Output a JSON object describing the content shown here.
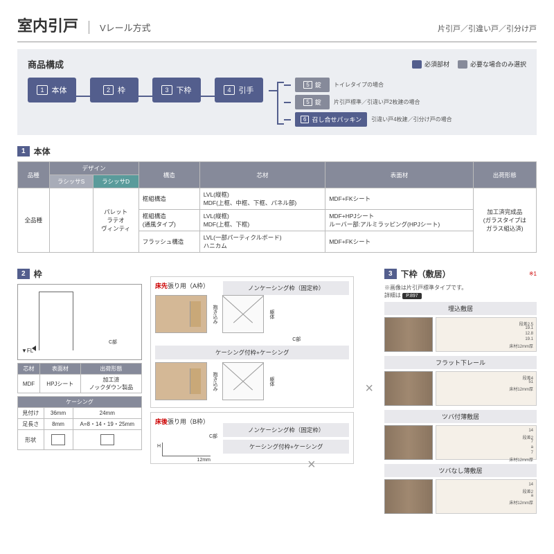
{
  "header": {
    "title": "室内引戸",
    "subtitle": "Vレール方式",
    "variants": "片引戸／引違い戸／引分け戸"
  },
  "composition": {
    "title": "商品構成",
    "legend": {
      "required": "必須部材",
      "optional": "必要な場合のみ選択",
      "required_color": "#535e8d",
      "optional_color": "#868a9a"
    },
    "boxes": [
      {
        "n": "1",
        "t": "本体"
      },
      {
        "n": "2",
        "t": "枠"
      },
      {
        "n": "3",
        "t": "下枠"
      },
      {
        "n": "4",
        "t": "引手"
      }
    ],
    "branches": [
      {
        "n": "5",
        "t": "錠",
        "cls": "",
        "label": "トイレタイプの場合"
      },
      {
        "n": "5",
        "t": "錠",
        "cls": "",
        "label": "片引戸標準／引違い戸2枚建の場合"
      },
      {
        "n": "6",
        "t": "召し合せパッキン",
        "cls": "blue",
        "label": "引違い戸4枚建／引分け戸の場合"
      }
    ]
  },
  "sec1": {
    "num": "1",
    "title": "本体",
    "headers": {
      "c1": "品種",
      "c2": "デザイン",
      "c2a": "ラシッサS",
      "c2b": "ラシッサD",
      "c3": "構造",
      "c4": "芯材",
      "c5": "表面材",
      "c6": "出荷形態"
    },
    "row_label": "全品種",
    "designs": "パレット\nラテオ\nヴィンティ",
    "rows": [
      {
        "k": "框組構造",
        "s": "LVL(縦框)\nMDF(上框、中框、下框、パネル部)",
        "m": "MDF+FKシート"
      },
      {
        "k": "框組構造\n(通風タイプ)",
        "s": "LVL(縦框)\nMDF(上框、下框)",
        "m": "MDF+HPJシート\nルーバー部:アルミラッピング(HPJシート)"
      },
      {
        "k": "フラッシュ構造",
        "s": "LVL(一部パーティクルボード)\nハニカム",
        "m": "MDF+FKシート"
      }
    ],
    "ship": "加工済完成品\n(ガラスタイプは\nガラス組込済)"
  },
  "sec2": {
    "num": "2",
    "title": "枠",
    "spec": {
      "h": [
        "芯材",
        "表面材",
        "出荷形態"
      ],
      "r": [
        "MDF",
        "HPJシート",
        "加工済\nノックダウン製品"
      ]
    },
    "casing": {
      "title": "ケーシング",
      "h": [
        "見付け",
        "36mm",
        "24mm"
      ],
      "r": [
        "足長さ",
        "8mm",
        "A=8・14・19・25mm"
      ],
      "shape": "形状"
    },
    "frameA": {
      "title_pre": "床先",
      "title_post": "張り用（A枠）",
      "opt1": "ノンケーシング枠（固定枠）",
      "opt2": "ケーシング付枠+ケーシング",
      "c": "C部",
      "h": "H"
    },
    "frameB": {
      "title_pre": "床後",
      "title_post": "張り用（B枠）",
      "opt1": "ノンケーシング枠（固定枠）",
      "opt2": "ケーシング付枠+ケーシング",
      "c": "C部",
      "h": "H",
      "dim": "12mm"
    }
  },
  "sec3": {
    "num": "3",
    "title": "下枠（敷居）",
    "star": "※1",
    "note": "※画像は片引戸標準タイプです。",
    "ref_pre": "詳細は",
    "ref": "P.897",
    "items": [
      {
        "t": "埋込敷居",
        "dims": [
          "段差2.5",
          "19.1",
          "12.8",
          "19.1",
          "床材12mm厚"
        ]
      },
      {
        "t": "フラット下レール",
        "dims": [
          "段差4",
          "51",
          "床材12mm厚"
        ]
      },
      {
        "t": "ツバ付薄敷居",
        "dims": [
          "14",
          "段差2",
          "7",
          "a",
          "7",
          "床材12mm厚"
        ]
      },
      {
        "t": "ツバなし薄敷居",
        "dims": [
          "14",
          "段差2",
          "a",
          "床材12mm厚"
        ]
      }
    ]
  },
  "labels": {
    "fl": "▼FL"
  }
}
